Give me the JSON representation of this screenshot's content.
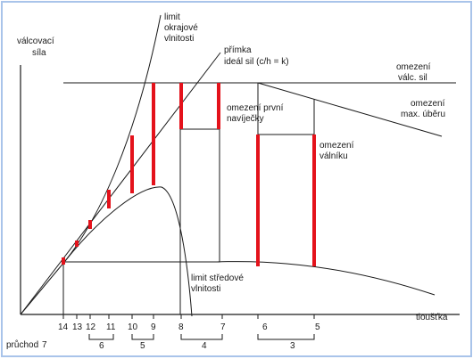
{
  "labels": {
    "y_axis": [
      "válcovací",
      "síla"
    ],
    "x_axis": "tloušťka",
    "edge_limit": [
      "limit",
      "okrajové",
      "vlnitosti"
    ],
    "ideal_line": [
      "přímka",
      "ideál sil (c/h = k)"
    ],
    "roll_force_limit": [
      "omezení",
      "válc. sil"
    ],
    "max_reduction_limit": [
      "omezení",
      "max. úběru"
    ],
    "first_coiler_limit": [
      "omezení první",
      "navíječky"
    ],
    "roll_limit": [
      "omezení",
      "válníku"
    ],
    "center_limit": [
      "limit středové",
      "vlnitosti"
    ],
    "pass_label": "průchod"
  },
  "ticks": [
    "14",
    "13",
    "12",
    "11",
    "10",
    "9",
    "8",
    "7",
    "6",
    "5"
  ],
  "passes": [
    "7",
    "6",
    "5",
    "4",
    "3"
  ],
  "colors": {
    "bar": "#e4121b",
    "line": "#1a1a1a",
    "frame": "#a9c4ea"
  }
}
